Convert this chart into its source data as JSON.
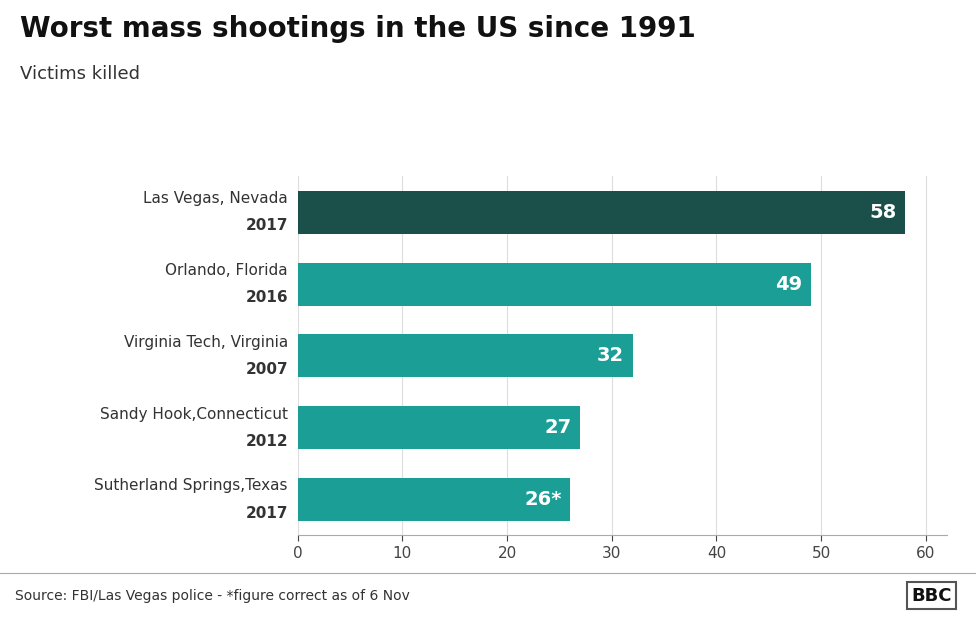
{
  "title": "Worst mass shootings in the US since 1991",
  "subtitle": "Victims killed",
  "cat_names": [
    "Las Vegas, Nevada",
    "Orlando, Florida",
    "Virginia Tech, Virginia",
    "Sandy Hook,Connecticut",
    "Sutherland Springs,Texas"
  ],
  "cat_years": [
    "2017",
    "2016",
    "2007",
    "2012",
    "2017"
  ],
  "values": [
    58,
    49,
    32,
    27,
    26
  ],
  "labels": [
    "58",
    "49",
    "32",
    "27",
    "26*"
  ],
  "bar_colors": [
    "#1b4f4a",
    "#1a9e96",
    "#1a9e96",
    "#1a9e96",
    "#1a9e96"
  ],
  "background_color": "#ffffff",
  "footer_bg_color": "#d9d9d9",
  "footer_text": "Source: FBI/Las Vegas police - *figure correct as of 6 Nov",
  "bbc_text": "BBC",
  "xlim": [
    0,
    62
  ],
  "xticks": [
    0,
    10,
    20,
    30,
    40,
    50,
    60
  ],
  "title_fontsize": 20,
  "subtitle_fontsize": 13,
  "label_fontsize": 14,
  "tick_fontsize": 11,
  "footer_fontsize": 10,
  "cat_fontsize": 11,
  "year_fontsize": 11
}
